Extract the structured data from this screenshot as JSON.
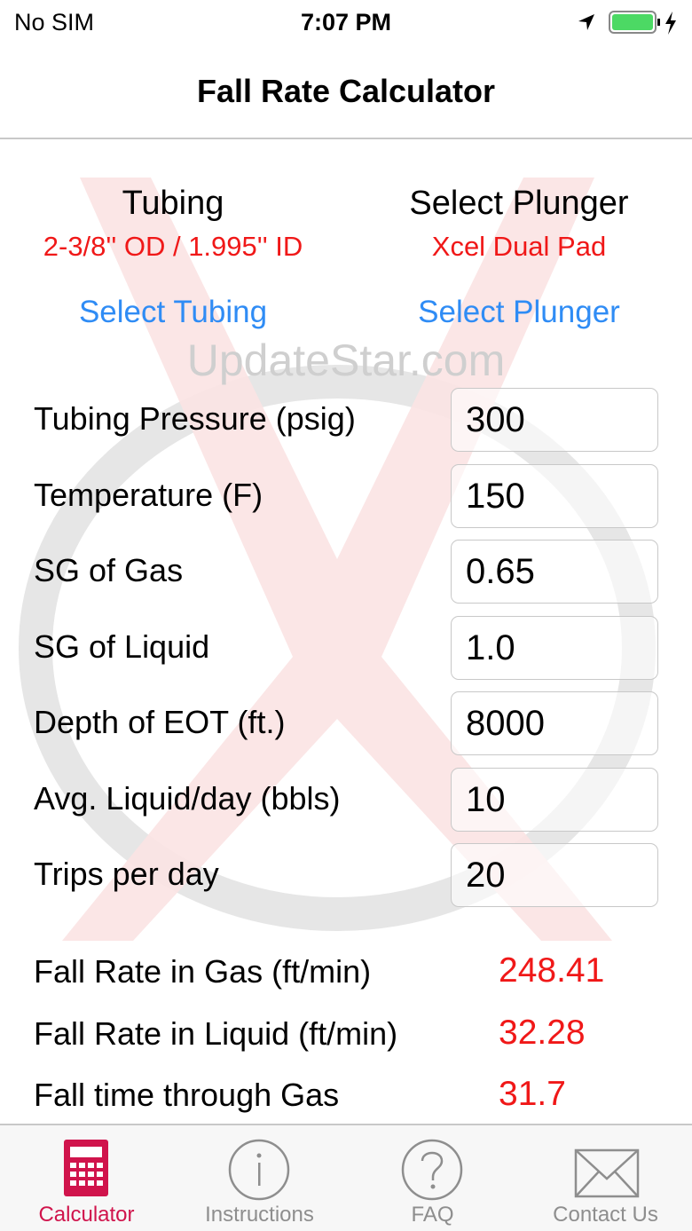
{
  "status_bar": {
    "carrier": "No SIM",
    "time": "7:07 PM",
    "battery_color": "#4cd964"
  },
  "nav": {
    "title": "Fall Rate Calculator"
  },
  "watermark": "UpdateStar.com",
  "tubing": {
    "heading": "Tubing",
    "value": "2-3/8'' OD / 1.995'' ID",
    "button": "Select Tubing"
  },
  "plunger": {
    "heading": "Select Plunger",
    "value": "Xcel Dual Pad",
    "button": "Select Plunger"
  },
  "inputs": [
    {
      "label": "Tubing Pressure (psig)",
      "value": "300"
    },
    {
      "label": "Temperature (F)",
      "value": "150"
    },
    {
      "label": "SG of Gas",
      "value": "0.65"
    },
    {
      "label": "SG of Liquid",
      "value": "1.0"
    },
    {
      "label": "Depth of EOT (ft.)",
      "value": "8000"
    },
    {
      "label": "Avg. Liquid/day (bbls)",
      "value": "10"
    },
    {
      "label": "Trips per day",
      "value": "20"
    }
  ],
  "results": [
    {
      "label": "Fall Rate in Gas (ft/min)",
      "value": "248.41"
    },
    {
      "label": "Fall Rate in Liquid (ft/min)",
      "value": "32.28"
    },
    {
      "label": "Fall time through Gas",
      "value": "31.7"
    }
  ],
  "tabs": [
    {
      "label": "Calculator",
      "icon": "calculator-icon",
      "active": true
    },
    {
      "label": "Instructions",
      "icon": "info-icon"
    },
    {
      "label": "FAQ",
      "icon": "question-icon"
    },
    {
      "label": "Contact Us",
      "icon": "envelope-icon"
    }
  ],
  "colors": {
    "accent": "#d0144c",
    "link": "#2f8cf5",
    "value": "#f01818"
  }
}
